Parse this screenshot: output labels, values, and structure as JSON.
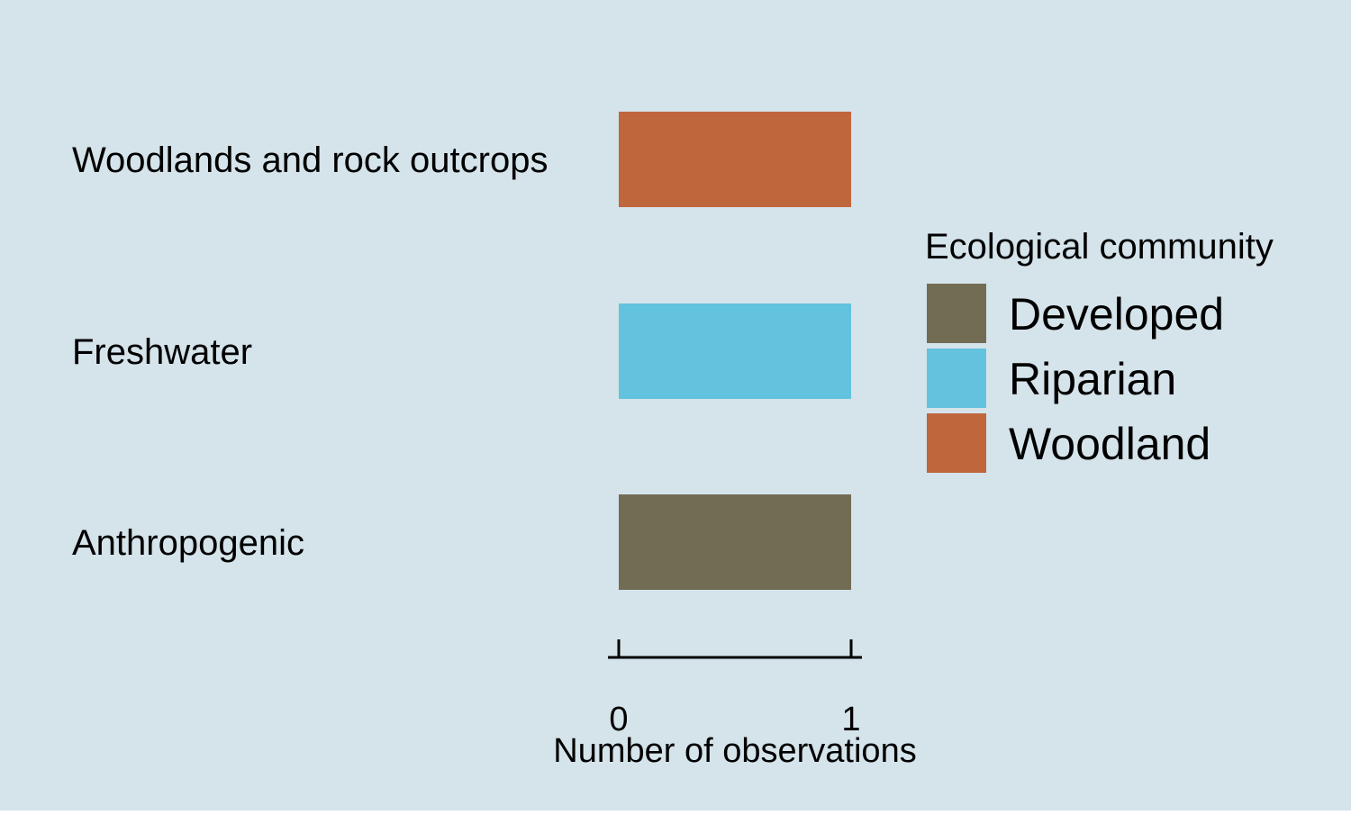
{
  "chart_data": {
    "type": "bar",
    "orientation": "horizontal",
    "title": "",
    "categories": [
      "Woodlands and rock outcrops",
      "Freshwater",
      "Anthropogenic"
    ],
    "values": [
      1,
      1,
      1
    ],
    "bar_groups": [
      "Woodland",
      "Riparian",
      "Developed"
    ],
    "xlabel": "Number of observations",
    "ylabel": "",
    "xlim": [
      0,
      1
    ],
    "xticks": [
      "0",
      "1"
    ],
    "grid": false,
    "legend": {
      "title": "Ecological community",
      "placement": "right",
      "entries": [
        {
          "label": "Developed",
          "color": "#736c55"
        },
        {
          "label": "Riparian",
          "color": "#63c2dd"
        },
        {
          "label": "Woodland",
          "color": "#bf663c"
        }
      ]
    }
  },
  "colors": {
    "background": "#d5e3ea",
    "axis": "#000000"
  }
}
